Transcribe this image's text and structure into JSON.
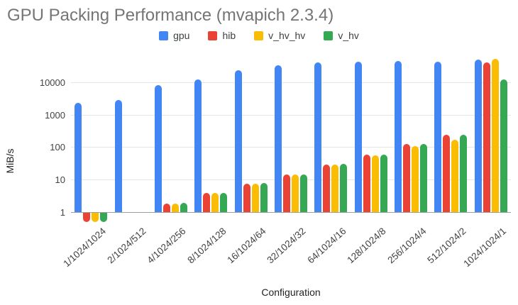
{
  "chart_data": {
    "type": "bar",
    "title": "GPU Packing Performance (mvapich 2.3.4)",
    "xlabel": "Configuration",
    "ylabel": "MiB/s",
    "y_scale": "log",
    "y_ticks": [
      1,
      10,
      100,
      1000,
      10000
    ],
    "ylim": [
      0.5,
      60000
    ],
    "grid": true,
    "legend_position": "top",
    "bar_corner": "rounded",
    "categories": [
      "1/1024/1024",
      "2/1024/512",
      "4/1024/256",
      "8/1024/128",
      "16/1024/64",
      "32/1024/32",
      "64/1024/16",
      "128/1024/8",
      "256/1024/4",
      "512/1024/2",
      "1024/1024/1"
    ],
    "series": [
      {
        "name": "gpu",
        "color": "#4285F4",
        "values": [
          2250,
          2750,
          8000,
          12200,
          23000,
          33500,
          41000,
          43500,
          45000,
          43500,
          49500
        ]
      },
      {
        "name": "hib",
        "color": "#EA4335",
        "values": [
          0.53,
          1,
          1.85,
          3.8,
          7.6,
          14.4,
          29.5,
          60,
          122,
          240,
          40000
        ]
      },
      {
        "name": "v_hv_hv",
        "color": "#FBBC04",
        "values": [
          0.53,
          1,
          1.8,
          3.85,
          7.6,
          14.2,
          28.5,
          57,
          108,
          168,
          51500
        ]
      },
      {
        "name": "v_hv",
        "color": "#34A853",
        "values": [
          0.53,
          1,
          1.9,
          3.8,
          7.8,
          14.7,
          30.5,
          60,
          125,
          235,
          12000
        ]
      }
    ],
    "colors": {
      "title_text": "#757575",
      "axis_text": "#424242",
      "gridline": "#e6e6e6",
      "baseline": "#9e9e9e"
    }
  }
}
